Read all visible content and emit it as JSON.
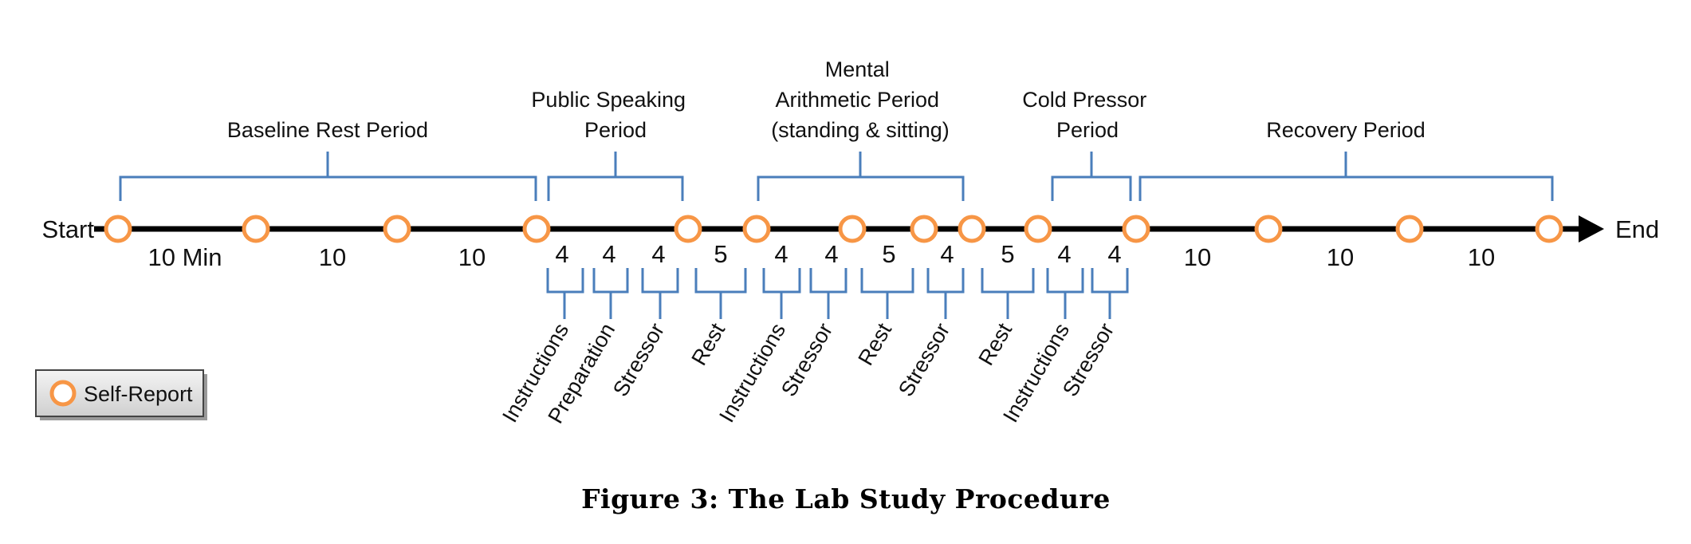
{
  "timeline": {
    "start_label": "Start",
    "end_label": "End",
    "line_color": "#000000",
    "bracket_color": "#4a7ebb",
    "marker_color": "#f79646"
  },
  "periods": [
    {
      "lines": [
        "Baseline Rest Period"
      ]
    },
    {
      "lines": [
        "Public Speaking",
        "Period"
      ]
    },
    {
      "lines": [
        "Mental",
        "Arithmetic Period",
        "(standing & sitting)"
      ]
    },
    {
      "lines": [
        "Cold Pressor",
        "Period"
      ]
    },
    {
      "lines": [
        "Recovery Period"
      ]
    }
  ],
  "durations": [
    "10 Min",
    "10",
    "10",
    "4",
    "4",
    "4",
    "5",
    "4",
    "4",
    "5",
    "4",
    "5",
    "4",
    "4",
    "10",
    "10",
    "10"
  ],
  "phases": [
    "Instructions",
    "Preparation",
    "Stressor",
    "Rest",
    "Instructions",
    "Stressor",
    "Rest",
    "Stressor",
    "Rest",
    "Instructions",
    "Stressor"
  ],
  "legend": {
    "label": "Self-Report",
    "icon": "orange-circle"
  },
  "caption": "Figure 3: The Lab Study Procedure"
}
